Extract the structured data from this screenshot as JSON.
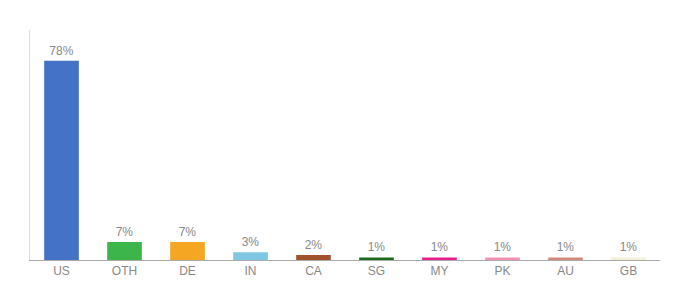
{
  "chart_data": {
    "type": "bar",
    "categories": [
      "US",
      "OTH",
      "DE",
      "IN",
      "CA",
      "SG",
      "MY",
      "PK",
      "AU",
      "GB"
    ],
    "values": [
      78,
      7,
      7,
      3,
      2,
      1,
      1,
      1,
      1,
      1
    ],
    "value_labels": [
      "78%",
      "7%",
      "7%",
      "3%",
      "2%",
      "1%",
      "1%",
      "1%",
      "1%",
      "1%"
    ],
    "colors": [
      "#4472c4",
      "#3cb54a",
      "#f5a623",
      "#7ec8e3",
      "#a0522d",
      "#1a6b1a",
      "#e91e8c",
      "#f48fb1",
      "#d4897a",
      "#f5f0d8"
    ],
    "ylim": [
      0,
      90
    ],
    "data_labels": true,
    "tick_labels": "x",
    "grid": false
  }
}
